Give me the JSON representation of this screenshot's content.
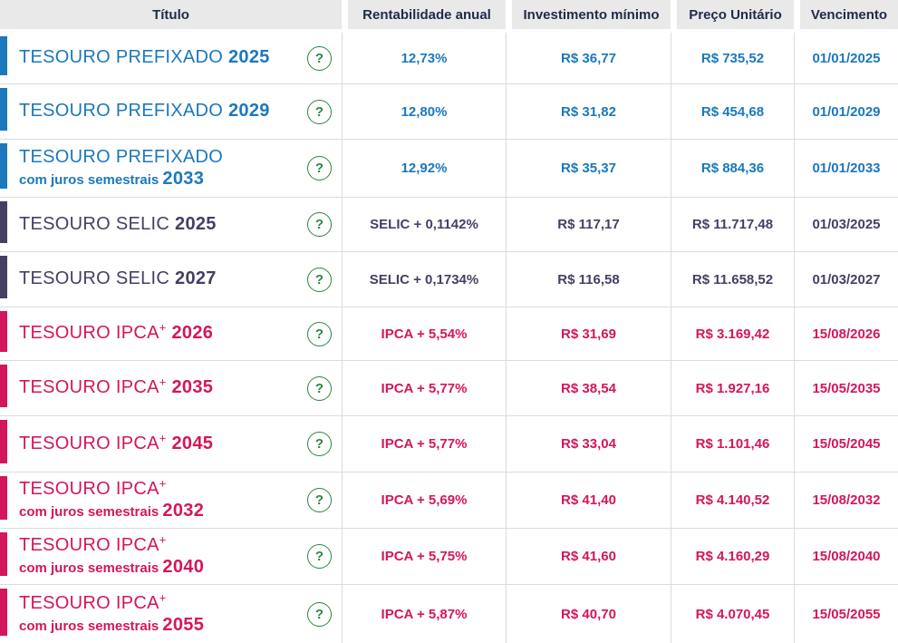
{
  "header": {
    "columns": [
      "Título",
      "Rentabilidade anual",
      "Investimento mínimo",
      "Preço Unitário",
      "Vencimento"
    ]
  },
  "icons": {
    "help_label": "?"
  },
  "colors": {
    "prefixado": "#1b78bd",
    "selic": "#473e63",
    "ipca": "#d4165c",
    "header_text": "#1e2b49",
    "header_bg": "#e9e9e9",
    "row_border": "#dcdcdc",
    "help_green": "#2e8540"
  },
  "rows": [
    {
      "theme": "prefixado",
      "title": "TESOURO PREFIXADO",
      "title_plus": false,
      "subtitle": "",
      "year": "2025",
      "rate": "12,73%",
      "min_investment": "R$ 36,77",
      "unit_price": "R$ 735,52",
      "maturity": "01/01/2025"
    },
    {
      "theme": "prefixado",
      "title": "TESOURO PREFIXADO",
      "title_plus": false,
      "subtitle": "",
      "year": "2029",
      "rate": "12,80%",
      "min_investment": "R$ 31,82",
      "unit_price": "R$ 454,68",
      "maturity": "01/01/2029"
    },
    {
      "theme": "prefixado",
      "title": "TESOURO PREFIXADO",
      "title_plus": false,
      "subtitle": "com juros semestrais",
      "year": "2033",
      "rate": "12,92%",
      "min_investment": "R$ 35,37",
      "unit_price": "R$ 884,36",
      "maturity": "01/01/2033"
    },
    {
      "theme": "selic",
      "title": "TESOURO SELIC",
      "title_plus": false,
      "subtitle": "",
      "year": "2025",
      "rate": "SELIC + 0,1142%",
      "min_investment": "R$ 117,17",
      "unit_price": "R$ 11.717,48",
      "maturity": "01/03/2025"
    },
    {
      "theme": "selic",
      "title": "TESOURO SELIC",
      "title_plus": false,
      "subtitle": "",
      "year": "2027",
      "rate": "SELIC + 0,1734%",
      "min_investment": "R$ 116,58",
      "unit_price": "R$ 11.658,52",
      "maturity": "01/03/2027"
    },
    {
      "theme": "ipca",
      "title": "TESOURO IPCA",
      "title_plus": true,
      "subtitle": "",
      "year": "2026",
      "rate": "IPCA + 5,54%",
      "min_investment": "R$ 31,69",
      "unit_price": "R$ 3.169,42",
      "maturity": "15/08/2026"
    },
    {
      "theme": "ipca",
      "title": "TESOURO IPCA",
      "title_plus": true,
      "subtitle": "",
      "year": "2035",
      "rate": "IPCA + 5,77%",
      "min_investment": "R$ 38,54",
      "unit_price": "R$ 1.927,16",
      "maturity": "15/05/2035"
    },
    {
      "theme": "ipca",
      "title": "TESOURO IPCA",
      "title_plus": true,
      "subtitle": "",
      "year": "2045",
      "rate": "IPCA + 5,77%",
      "min_investment": "R$ 33,04",
      "unit_price": "R$ 1.101,46",
      "maturity": "15/05/2045"
    },
    {
      "theme": "ipca",
      "title": "TESOURO IPCA",
      "title_plus": true,
      "subtitle": "com juros semestrais",
      "year": "2032",
      "rate": "IPCA + 5,69%",
      "min_investment": "R$ 41,40",
      "unit_price": "R$ 4.140,52",
      "maturity": "15/08/2032"
    },
    {
      "theme": "ipca",
      "title": "TESOURO IPCA",
      "title_plus": true,
      "subtitle": "com juros semestrais",
      "year": "2040",
      "rate": "IPCA + 5,75%",
      "min_investment": "R$ 41,60",
      "unit_price": "R$ 4.160,29",
      "maturity": "15/08/2040"
    },
    {
      "theme": "ipca",
      "title": "TESOURO IPCA",
      "title_plus": true,
      "subtitle": "com juros semestrais",
      "year": "2055",
      "rate": "IPCA + 5,87%",
      "min_investment": "R$ 40,70",
      "unit_price": "R$ 4.070,45",
      "maturity": "15/05/2055"
    }
  ]
}
